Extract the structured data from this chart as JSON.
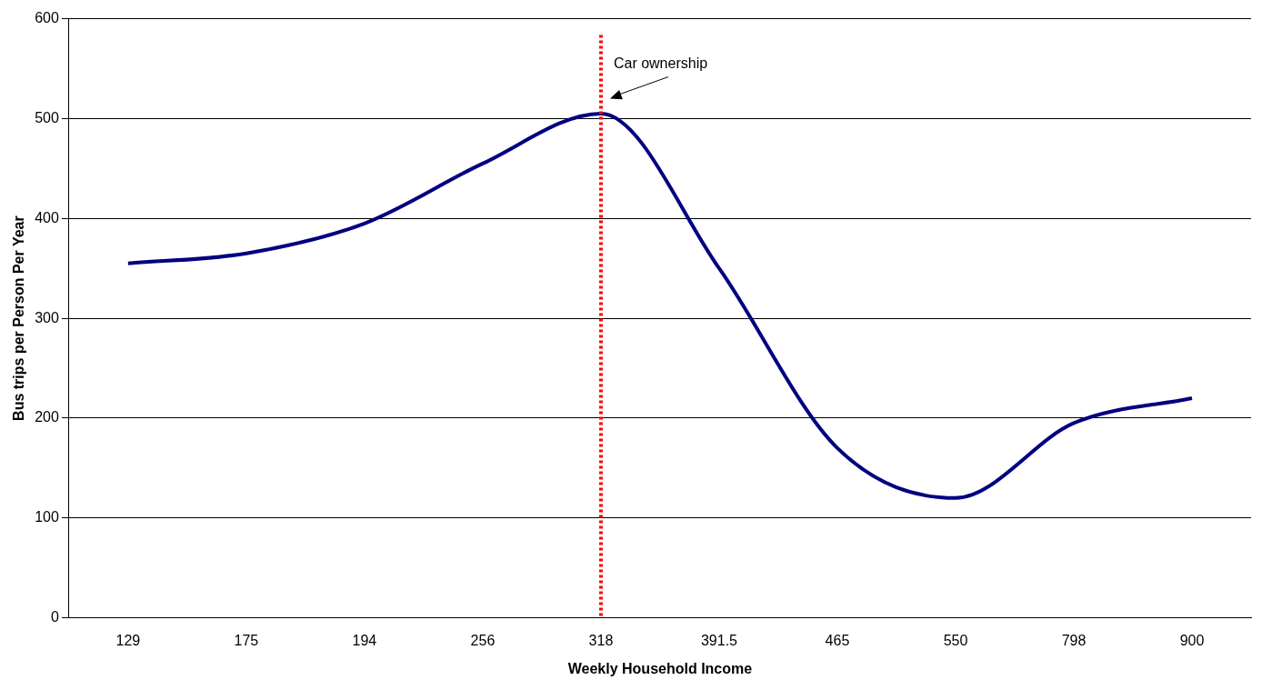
{
  "chart_data": {
    "type": "line",
    "xlabel": "Weekly Household Income",
    "ylabel": "Bus trips per Person Per Year",
    "categories": [
      "129",
      "175",
      "194",
      "256",
      "318",
      "391.5",
      "465",
      "550",
      "798",
      "900"
    ],
    "series": [
      {
        "color": "#000080",
        "values": [
          355,
          365,
          395,
          455,
          505,
          350,
          170,
          120,
          195,
          220
        ]
      }
    ],
    "ylim": [
      0,
      600
    ],
    "yticks": [
      0,
      100,
      200,
      300,
      400,
      500,
      600
    ],
    "grid": "y",
    "legend": false,
    "marker": "none",
    "line_style": "solid",
    "ref_lines": [
      {
        "axis": "x",
        "value": "318",
        "color": "#ff0000",
        "line_style": "dotted",
        "label": "Car ownership"
      }
    ]
  }
}
